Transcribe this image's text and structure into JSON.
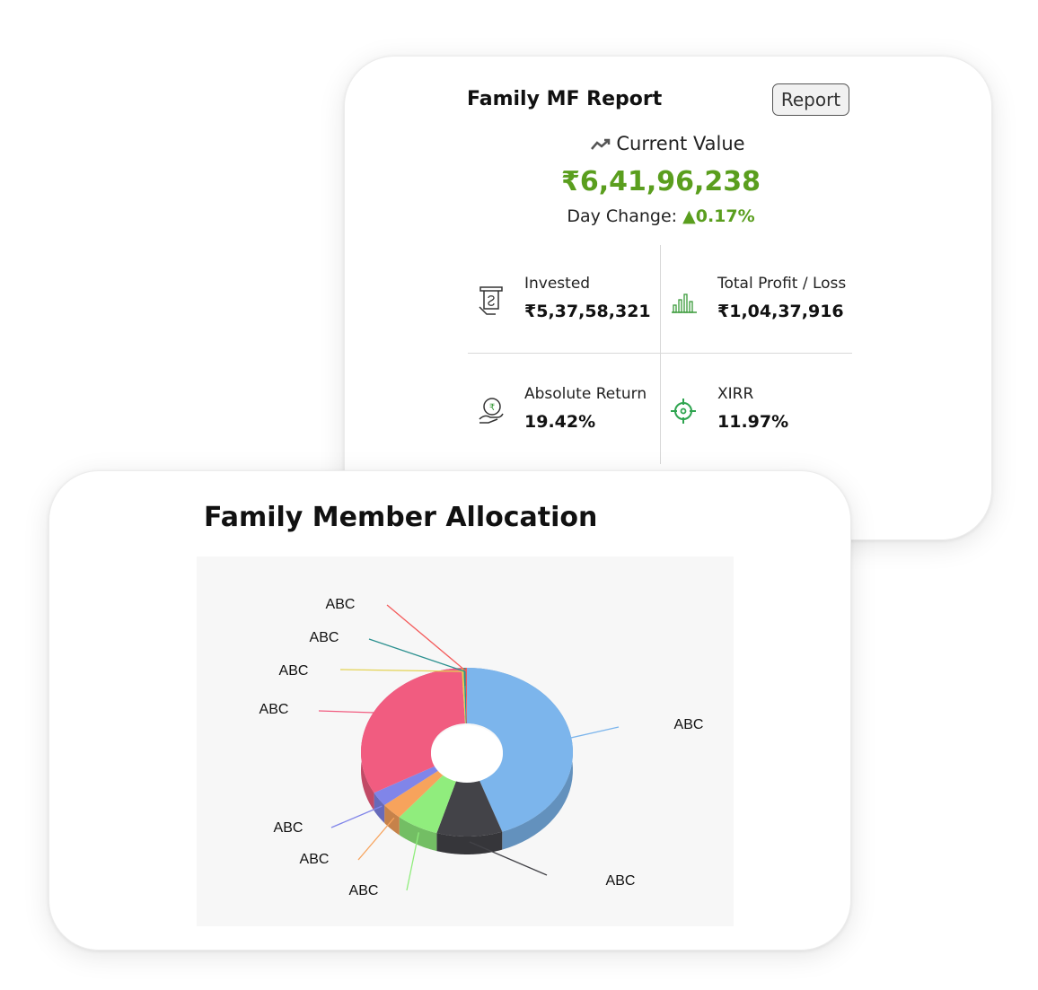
{
  "report": {
    "title": "Family MF Report",
    "report_button": "Report",
    "current_value_label": "Current Value",
    "current_value": "₹6,41,96,238",
    "day_change_label": "Day Change:",
    "day_change_value": "▲0.17%",
    "metrics": [
      {
        "label": "Invested",
        "value": "₹5,37,58,321",
        "icon": "invested-icon"
      },
      {
        "label": "Total Profit / Loss",
        "value": "₹1,04,37,916",
        "icon": "bar-chart-icon"
      },
      {
        "label": "Absolute Return",
        "value": "19.42%",
        "icon": "rupee-hand-icon"
      },
      {
        "label": "XIRR",
        "value": "11.97%",
        "icon": "target-icon"
      }
    ],
    "colors": {
      "positive": "#5a9e1e"
    }
  },
  "allocation": {
    "title": "Family Member Allocation"
  },
  "chart_data": {
    "type": "pie",
    "style": "3d-donut",
    "categories": [
      "ABC",
      "ABC",
      "ABC",
      "ABC",
      "ABC",
      "ABC",
      "ABC",
      "ABC",
      "ABC"
    ],
    "values": [
      44.6,
      10.0,
      6.4,
      3.2,
      2.8,
      32.2,
      0.3,
      0.3,
      0.2
    ],
    "colors": [
      "#7cb5ec",
      "#434348",
      "#90ed7d",
      "#f7a35c",
      "#8085e9",
      "#f15c80",
      "#e4d354",
      "#2b908f",
      "#f45b5b"
    ]
  }
}
